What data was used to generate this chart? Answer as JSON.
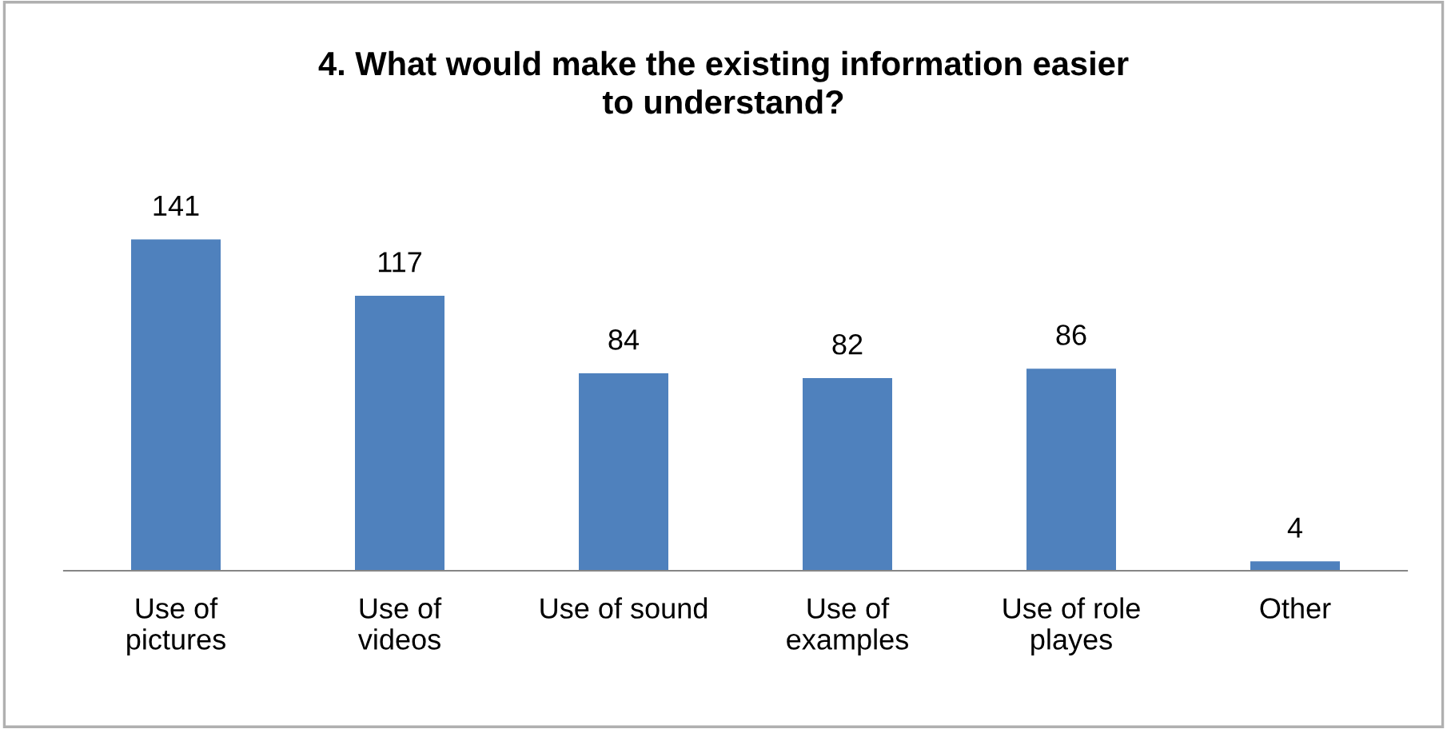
{
  "chart_data": {
    "type": "bar",
    "title": "4. What would make the existing information easier\nto understand?",
    "categories": [
      "Use of\npictures",
      "Use of\nvideos",
      "Use of sound",
      "Use of\nexamples",
      "Use of role\nplayes",
      "Other"
    ],
    "values": [
      141,
      117,
      84,
      82,
      86,
      4
    ],
    "color": "#4f81bd",
    "data_labels": true,
    "grid": false,
    "legend": false
  }
}
